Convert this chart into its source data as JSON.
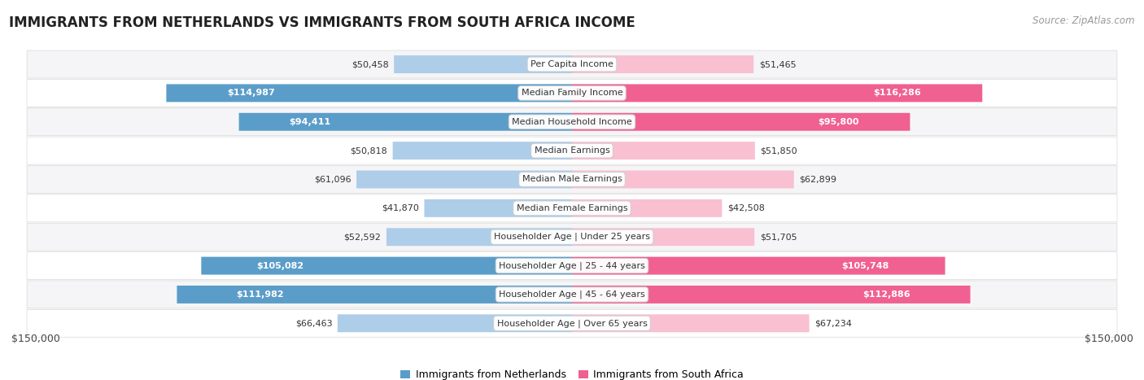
{
  "title": "IMMIGRANTS FROM NETHERLANDS VS IMMIGRANTS FROM SOUTH AFRICA INCOME",
  "source": "Source: ZipAtlas.com",
  "categories": [
    "Per Capita Income",
    "Median Family Income",
    "Median Household Income",
    "Median Earnings",
    "Median Male Earnings",
    "Median Female Earnings",
    "Householder Age | Under 25 years",
    "Householder Age | 25 - 44 years",
    "Householder Age | 45 - 64 years",
    "Householder Age | Over 65 years"
  ],
  "netherlands_values": [
    50458,
    114987,
    94411,
    50818,
    61096,
    41870,
    52592,
    105082,
    111982,
    66463
  ],
  "south_africa_values": [
    51465,
    116286,
    95800,
    51850,
    62899,
    42508,
    51705,
    105748,
    112886,
    67234
  ],
  "netherlands_color_light": "#aecde8",
  "netherlands_color_dark": "#5b9dc9",
  "south_africa_color_light": "#f8c0d0",
  "south_africa_color_dark": "#f06090",
  "netherlands_label": "Immigrants from Netherlands",
  "south_africa_label": "Immigrants from South Africa",
  "max_value": 150000,
  "title_fontsize": 12,
  "source_fontsize": 8.5,
  "bar_fontsize": 8,
  "category_fontsize": 8,
  "row_bg_odd": "#f5f5f7",
  "row_bg_even": "#ffffff",
  "threshold": 70000
}
